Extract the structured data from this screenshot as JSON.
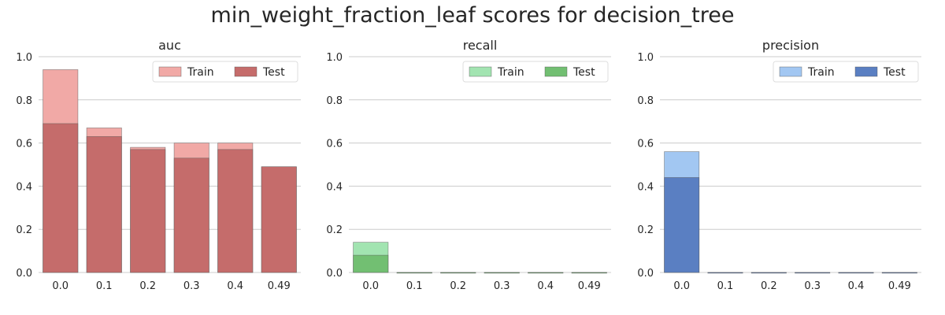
{
  "figure_title": "min_weight_fraction_leaf scores for decision_tree",
  "chart_data": [
    {
      "type": "bar",
      "title": "auc",
      "categories": [
        "0.0",
        "0.1",
        "0.2",
        "0.3",
        "0.4",
        "0.49"
      ],
      "ylim": [
        0,
        1.0
      ],
      "yticks": [
        "0.0",
        "0.2",
        "0.4",
        "0.6",
        "0.8",
        "1.0"
      ],
      "grid": "horizontal",
      "legend_position": "top-right",
      "series": [
        {
          "name": "Train",
          "values": [
            0.94,
            0.67,
            0.58,
            0.6,
            0.6,
            0.49
          ],
          "color": "#f1a9a6"
        },
        {
          "name": "Test",
          "values": [
            0.69,
            0.63,
            0.57,
            0.53,
            0.57,
            0.49
          ],
          "color": "#c56c6b"
        }
      ]
    },
    {
      "type": "bar",
      "title": "recall",
      "categories": [
        "0.0",
        "0.1",
        "0.2",
        "0.3",
        "0.4",
        "0.49"
      ],
      "ylim": [
        0,
        1.0
      ],
      "yticks": [
        "0.0",
        "0.2",
        "0.4",
        "0.6",
        "0.8",
        "1.0"
      ],
      "grid": "horizontal",
      "legend_position": "top-right",
      "series": [
        {
          "name": "Train",
          "values": [
            0.14,
            0.0,
            0.0,
            0.0,
            0.0,
            0.0
          ],
          "color": "#a2e4b1"
        },
        {
          "name": "Test",
          "values": [
            0.08,
            0.0,
            0.0,
            0.0,
            0.0,
            0.0
          ],
          "color": "#72bf72"
        }
      ]
    },
    {
      "type": "bar",
      "title": "precision",
      "categories": [
        "0.0",
        "0.1",
        "0.2",
        "0.3",
        "0.4",
        "0.49"
      ],
      "ylim": [
        0,
        1.0
      ],
      "yticks": [
        "0.0",
        "0.2",
        "0.4",
        "0.6",
        "0.8",
        "1.0"
      ],
      "grid": "horizontal",
      "legend_position": "top-right",
      "series": [
        {
          "name": "Train",
          "values": [
            0.56,
            0.0,
            0.0,
            0.0,
            0.0,
            0.0
          ],
          "color": "#a2c7f2"
        },
        {
          "name": "Test",
          "values": [
            0.44,
            0.0,
            0.0,
            0.0,
            0.0,
            0.0
          ],
          "color": "#5a7fc2"
        }
      ]
    }
  ]
}
